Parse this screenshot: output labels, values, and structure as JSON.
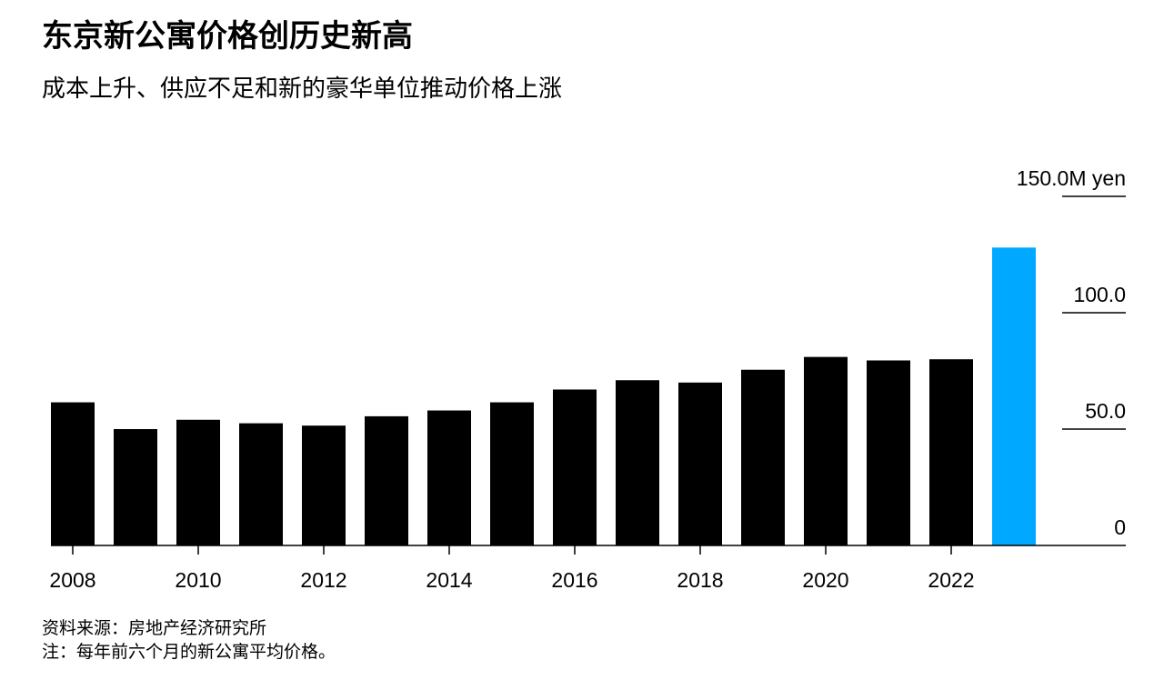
{
  "title": "东京新公寓价格创历史新高",
  "subtitle": "成本上升、供应不足和新的豪华单位推动价格上涨",
  "source": "资料来源：房地产经济研究所",
  "note": "注：每年前六个月的新公寓平均价格。",
  "colors": {
    "bar": "#000000",
    "highlight": "#00A9FF",
    "axis": "#000000"
  },
  "chart_data": {
    "type": "bar",
    "categories": [
      "2008",
      "2009",
      "2010",
      "2011",
      "2012",
      "2013",
      "2014",
      "2015",
      "2016",
      "2017",
      "2018",
      "2019",
      "2020",
      "2021",
      "2022",
      "2023"
    ],
    "values": [
      61.5,
      50.0,
      54.0,
      52.5,
      51.5,
      55.5,
      58.0,
      61.5,
      67.0,
      71.0,
      70.0,
      75.5,
      81.0,
      79.5,
      80.0,
      128.0
    ],
    "highlight_index": 15,
    "x_tick_labels": [
      "2008",
      "2010",
      "2012",
      "2014",
      "2016",
      "2018",
      "2020",
      "2022"
    ],
    "y_ticks": [
      {
        "value": 0,
        "label": "0"
      },
      {
        "value": 50,
        "label": "50.0"
      },
      {
        "value": 100,
        "label": "100.0"
      },
      {
        "value": 150,
        "label": "150.0M yen"
      }
    ],
    "ylim": [
      0,
      150
    ],
    "axis_position": "right",
    "grid": false,
    "xlabel": "",
    "ylabel": ""
  }
}
